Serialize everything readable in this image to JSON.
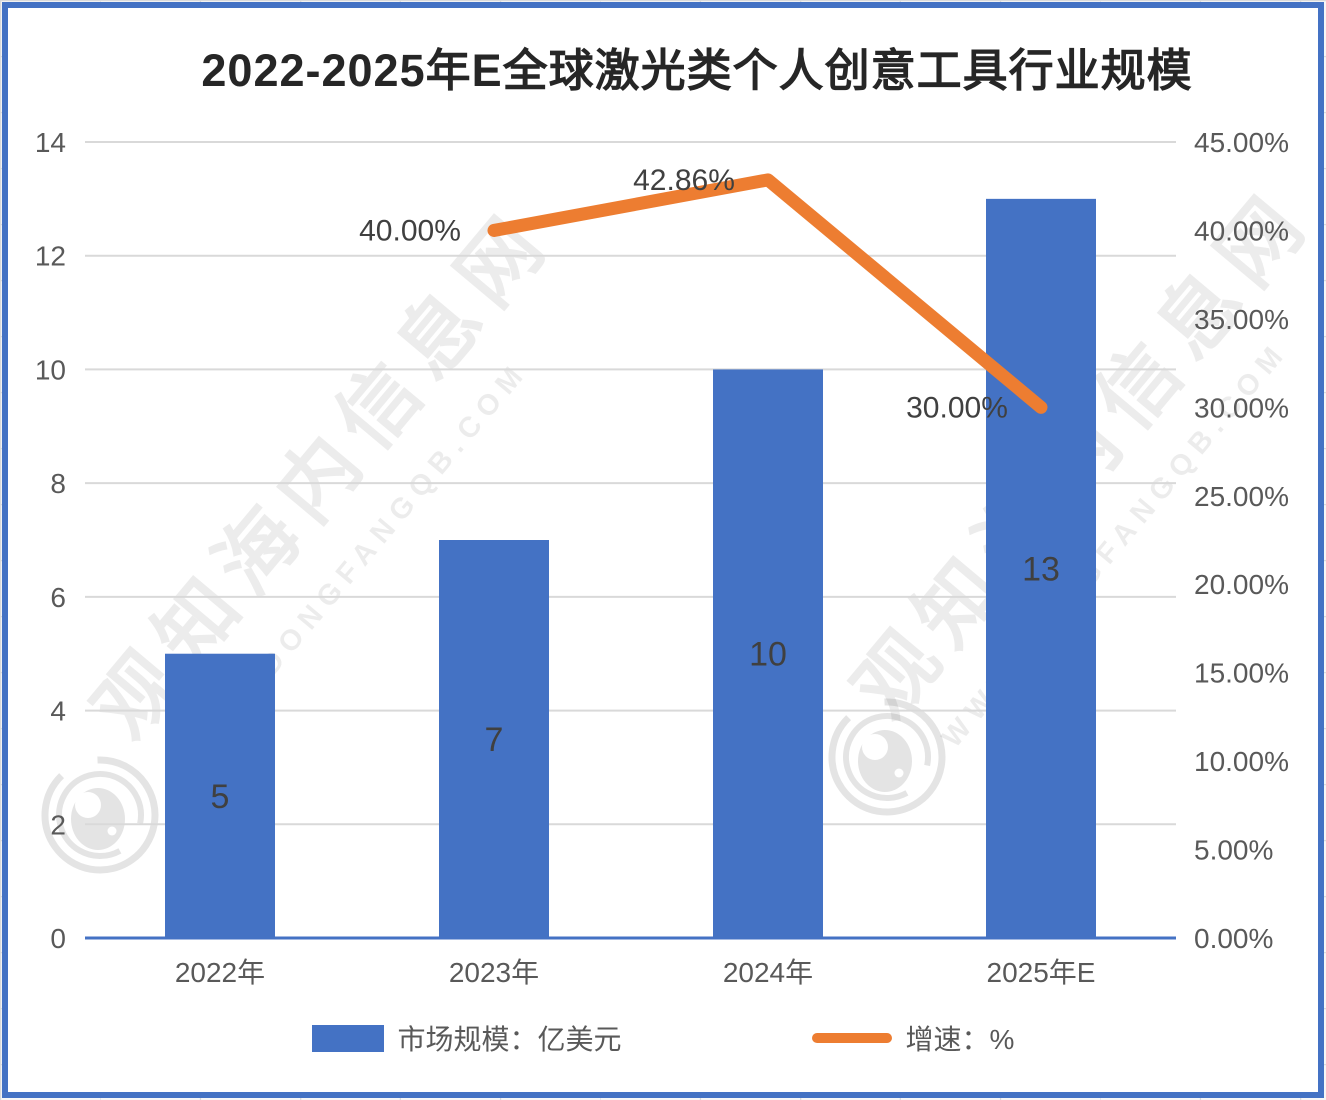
{
  "title": "2022-2025年E全球激光类个人创意工具行业规模",
  "colors": {
    "bar": "#4472C4",
    "line": "#ED7D31",
    "grid": "#D9D9D9",
    "axis_line": "#4472C4",
    "frame": "#4472C4",
    "title_text": "#262626",
    "tick_text": "#595959",
    "data_label_text": "#404040"
  },
  "chart_data": {
    "type": "bar",
    "subtype": "combo bar + line, dual axis",
    "title": "2022-2025年E全球激光类个人创意工具行业规模",
    "categories": [
      "2022年",
      "2023年",
      "2024年",
      "2025年E"
    ],
    "series": [
      {
        "name": "市场规模：亿美元",
        "type": "bar",
        "axis": "left",
        "color": "#4472C4",
        "values": [
          5,
          7,
          10,
          13
        ],
        "data_labels": [
          "5",
          "7",
          "10",
          "13"
        ]
      },
      {
        "name": "增速：%",
        "type": "line",
        "axis": "right",
        "color": "#ED7D31",
        "values": [
          null,
          40,
          42.86,
          30
        ],
        "data_labels": [
          null,
          "40.00%",
          "42.86%",
          "30.00%"
        ]
      }
    ],
    "y_left": {
      "min": 0,
      "max": 14,
      "step": 2,
      "tick_labels": [
        "0",
        "2",
        "4",
        "6",
        "8",
        "10",
        "12",
        "14"
      ]
    },
    "y_right": {
      "min": 0,
      "max": 45,
      "step": 5,
      "tick_labels": [
        "0.00%",
        "5.00%",
        "10.00%",
        "15.00%",
        "20.00%",
        "25.00%",
        "30.00%",
        "35.00%",
        "40.00%",
        "45.00%"
      ]
    },
    "grid": "horizontal gridlines at left-axis ticks",
    "legend_position": "bottom",
    "xlabel": "",
    "ylabel": ""
  },
  "legend": {
    "items": [
      {
        "label": "市场规模：亿美元",
        "swatch": "bar",
        "color": "#4472C4"
      },
      {
        "label": "增速：%",
        "swatch": "line",
        "color": "#ED7D31"
      }
    ]
  },
  "watermark": {
    "cn": "观知海内信息网",
    "url": "WWW.DONGFANGQB.COM"
  }
}
